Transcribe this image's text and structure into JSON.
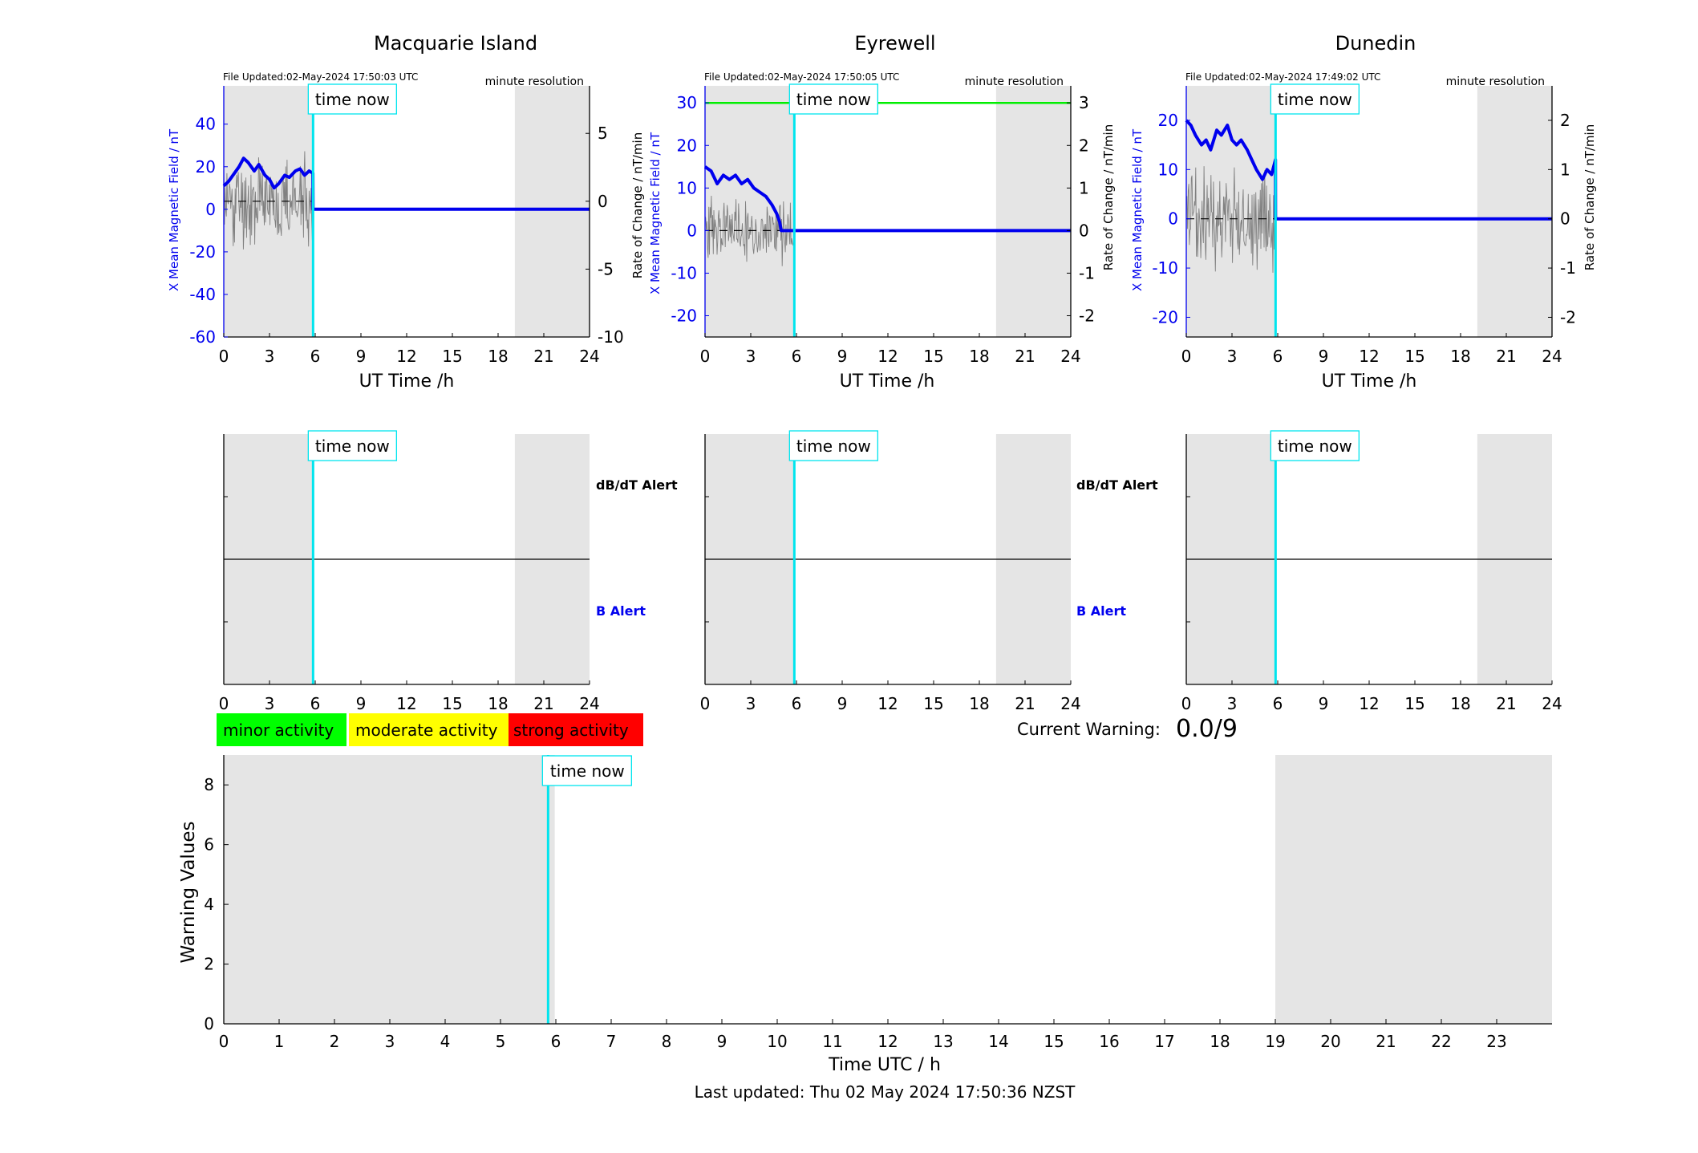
{
  "time_now_label": "time now",
  "stations": [
    {
      "name": "Macquarie Island",
      "file_updated": "File Updated:02-May-2024 17:50:03 UTC",
      "resolution": "minute resolution",
      "left_ylabel": "X Mean Magnetic Field / nT",
      "right_ylabel": "",
      "xlabel": "UT Time /h",
      "left_ylim": [
        -60,
        58
      ],
      "left_yticks": [
        -60,
        -40,
        -20,
        0,
        20,
        40
      ],
      "right_ylim": [
        -10,
        8.5
      ],
      "right_yticks": [
        -10,
        -5,
        0,
        5
      ],
      "threshold": null,
      "x_mean_points": [
        [
          0,
          11
        ],
        [
          0.3,
          13
        ],
        [
          0.7,
          17
        ],
        [
          1,
          20
        ],
        [
          1.3,
          24
        ],
        [
          1.6,
          22
        ],
        [
          2,
          18
        ],
        [
          2.3,
          21
        ],
        [
          2.7,
          16
        ],
        [
          3,
          14
        ],
        [
          3.3,
          10
        ],
        [
          3.6,
          12
        ],
        [
          4,
          16
        ],
        [
          4.3,
          15
        ],
        [
          4.7,
          18
        ],
        [
          5,
          19
        ],
        [
          5.3,
          16
        ],
        [
          5.6,
          18
        ],
        [
          5.85,
          17
        ],
        [
          5.86,
          0
        ],
        [
          24,
          0
        ]
      ],
      "rate_amplitude": 4,
      "rate_seed": 11
    },
    {
      "name": "Eyrewell",
      "file_updated": "File Updated:02-May-2024 17:50:05 UTC",
      "resolution": "minute resolution",
      "left_ylabel": "X Mean Magnetic Field / nT",
      "right_ylabel": "Rate of Change / nT/min",
      "xlabel": "UT Time /h",
      "left_ylim": [
        -25,
        34
      ],
      "left_yticks": [
        -20,
        -10,
        0,
        10,
        20,
        30
      ],
      "right_ylim": [
        -2.5,
        3.4
      ],
      "right_yticks": [
        -2,
        -1,
        0,
        1,
        2,
        3
      ],
      "threshold": 30,
      "x_mean_points": [
        [
          0,
          15
        ],
        [
          0.4,
          14
        ],
        [
          0.8,
          11
        ],
        [
          1.2,
          13
        ],
        [
          1.6,
          12
        ],
        [
          2,
          13
        ],
        [
          2.4,
          11
        ],
        [
          2.8,
          12
        ],
        [
          3.2,
          10
        ],
        [
          3.6,
          9
        ],
        [
          4,
          8
        ],
        [
          4.4,
          6
        ],
        [
          4.7,
          4
        ],
        [
          4.9,
          2
        ],
        [
          5.0,
          0
        ],
        [
          24,
          0
        ]
      ],
      "rate_amplitude": 0.9,
      "rate_seed": 23
    },
    {
      "name": "Dunedin",
      "file_updated": "File Updated:02-May-2024 17:49:02 UTC",
      "resolution": "minute resolution",
      "left_ylabel": "X Mean Magnetic Field / nT",
      "right_ylabel": "Rate of Change / nT/min",
      "xlabel": "UT Time /h",
      "left_ylim": [
        -24,
        27
      ],
      "left_yticks": [
        -20,
        -10,
        0,
        10,
        20
      ],
      "right_ylim": [
        -2.4,
        2.7
      ],
      "right_yticks": [
        -2,
        -1,
        0,
        1,
        2
      ],
      "threshold": null,
      "x_mean_points": [
        [
          0,
          20
        ],
        [
          0.3,
          19
        ],
        [
          0.6,
          17
        ],
        [
          1,
          15
        ],
        [
          1.3,
          16
        ],
        [
          1.6,
          14
        ],
        [
          2,
          18
        ],
        [
          2.3,
          17
        ],
        [
          2.7,
          19
        ],
        [
          3,
          16
        ],
        [
          3.3,
          15
        ],
        [
          3.6,
          16
        ],
        [
          4,
          14
        ],
        [
          4.3,
          12
        ],
        [
          4.6,
          10
        ],
        [
          5,
          8
        ],
        [
          5.3,
          10
        ],
        [
          5.6,
          9
        ],
        [
          5.85,
          12
        ],
        [
          5.86,
          0
        ],
        [
          24,
          0
        ]
      ],
      "rate_amplitude": 1.2,
      "rate_seed": 37
    }
  ],
  "alerts": {
    "db_alert": "dB/dT Alert",
    "b_alert": "B Alert"
  },
  "legend": {
    "minor": "minor activity",
    "moderate": "moderate activity",
    "strong": "strong activity"
  },
  "current_warning": {
    "label": "Current Warning:",
    "value": "0.0/9"
  },
  "warning_chart": {
    "ylabel": "Warning Values",
    "xlabel": "Time UTC / h",
    "ylim": [
      0,
      9
    ],
    "yticks": [
      0,
      2,
      4,
      6,
      8
    ],
    "xticks": [
      0,
      1,
      2,
      3,
      4,
      5,
      6,
      7,
      8,
      9,
      10,
      11,
      12,
      13,
      14,
      15,
      16,
      17,
      18,
      19,
      20,
      21,
      22,
      23
    ]
  },
  "colors": {
    "x_mean": "#0000ee",
    "rate": "#808080",
    "time_now": "#00e5ee",
    "night": "#e5e5e5",
    "threshold": "#00ee00",
    "minor": "#00ff00",
    "moderate": "#ffff00",
    "strong": "#ff0000",
    "b_alert": "#0000ee"
  },
  "last_updated": "Last updated: Thu 02 May 2024 17:50:36 NZST",
  "chart_data": [
    {
      "type": "line",
      "title": "Macquarie Island",
      "xlabel": "UT Time /h",
      "ylabel": "X Mean Magnetic Field / nT",
      "xlim": [
        0,
        24
      ],
      "xticks": [
        0,
        3,
        6,
        9,
        12,
        15,
        18,
        21,
        24
      ],
      "ylim": [
        -60,
        58
      ],
      "time_now": 5.86,
      "night_shading": [
        [
          0,
          5.86
        ],
        [
          19.1,
          24
        ]
      ],
      "series": [
        {
          "values_x": [
            0,
            0.3,
            0.7,
            1,
            1.3,
            1.6,
            2,
            2.3,
            2.7,
            3,
            3.3,
            3.6,
            4,
            4.3,
            4.7,
            5,
            5.3,
            5.6,
            5.85
          ],
          "values": [
            11,
            13,
            17,
            20,
            24,
            22,
            18,
            21,
            16,
            14,
            10,
            12,
            16,
            15,
            18,
            19,
            16,
            18,
            17
          ]
        }
      ]
    },
    {
      "type": "line",
      "title": "Eyrewell",
      "xlabel": "UT Time /h",
      "ylabel": "X Mean Magnetic Field / nT",
      "xlim": [
        0,
        24
      ],
      "xticks": [
        0,
        3,
        6,
        9,
        12,
        15,
        18,
        21,
        24
      ],
      "ylim": [
        -25,
        34
      ],
      "time_now": 5.86,
      "night_shading": [
        [
          0,
          5.86
        ],
        [
          19.1,
          24
        ]
      ],
      "series": [
        {
          "values_x": [
            0,
            0.4,
            0.8,
            1.2,
            1.6,
            2,
            2.4,
            2.8,
            3.2,
            3.6,
            4,
            4.4,
            4.7,
            4.9,
            5.0
          ],
          "values": [
            15,
            14,
            11,
            13,
            12,
            13,
            11,
            12,
            10,
            9,
            8,
            6,
            4,
            2,
            0
          ]
        },
        {
          "values_x": [
            0,
            24
          ],
          "values": [
            30,
            30
          ]
        }
      ]
    },
    {
      "type": "line",
      "title": "Dunedin",
      "xlabel": "UT Time /h",
      "ylabel": "X Mean Magnetic Field / nT",
      "xlim": [
        0,
        24
      ],
      "xticks": [
        0,
        3,
        6,
        9,
        12,
        15,
        18,
        21,
        24
      ],
      "ylim": [
        -24,
        27
      ],
      "time_now": 5.86,
      "night_shading": [
        [
          0,
          5.86
        ],
        [
          19.1,
          24
        ]
      ],
      "series": [
        {
          "values_x": [
            0,
            0.3,
            0.6,
            1,
            1.3,
            1.6,
            2,
            2.3,
            2.7,
            3,
            3.3,
            3.6,
            4,
            4.3,
            4.6,
            5,
            5.3,
            5.6,
            5.85
          ],
          "values": [
            20,
            19,
            17,
            15,
            16,
            14,
            18,
            17,
            19,
            16,
            15,
            16,
            14,
            12,
            10,
            8,
            10,
            9,
            12
          ]
        }
      ]
    },
    {
      "type": "bar",
      "xlabel": "Time UTC / h",
      "ylabel": "Warning Values",
      "xlim": [
        0,
        24
      ],
      "ylim": [
        0,
        9
      ],
      "time_now": 5.86,
      "night_shading": [
        [
          0,
          5.98
        ],
        [
          19,
          24
        ]
      ],
      "series": [
        {
          "values": []
        }
      ]
    }
  ]
}
